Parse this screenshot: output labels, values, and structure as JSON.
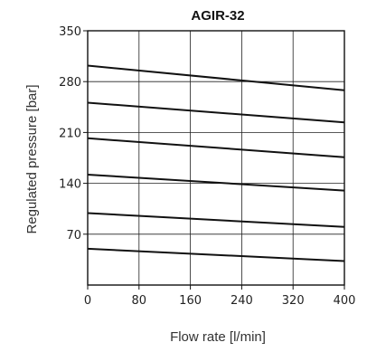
{
  "chart_data": {
    "type": "line",
    "title": "AGIR-32",
    "xlabel": "Flow rate [l/min]",
    "ylabel": "Regulated pressure [bar]",
    "xlim": [
      0,
      400
    ],
    "ylim": [
      0,
      350
    ],
    "xticks": [
      0,
      80,
      160,
      240,
      320,
      400
    ],
    "yticks": [
      70,
      140,
      210,
      280,
      350
    ],
    "xtick_labels": [
      "0",
      "80",
      "160",
      "240",
      "320",
      "400"
    ],
    "ytick_labels": [
      "70",
      "140",
      "210",
      "280",
      "350"
    ],
    "grid": true,
    "series": [
      {
        "x": [
          0,
          400
        ],
        "y": [
          302,
          268
        ]
      },
      {
        "x": [
          0,
          400
        ],
        "y": [
          251,
          224
        ]
      },
      {
        "x": [
          0,
          400
        ],
        "y": [
          202,
          176
        ]
      },
      {
        "x": [
          0,
          400
        ],
        "y": [
          152,
          130
        ]
      },
      {
        "x": [
          0,
          400
        ],
        "y": [
          99,
          80
        ]
      },
      {
        "x": [
          0,
          400
        ],
        "y": [
          50,
          33
        ]
      }
    ]
  }
}
